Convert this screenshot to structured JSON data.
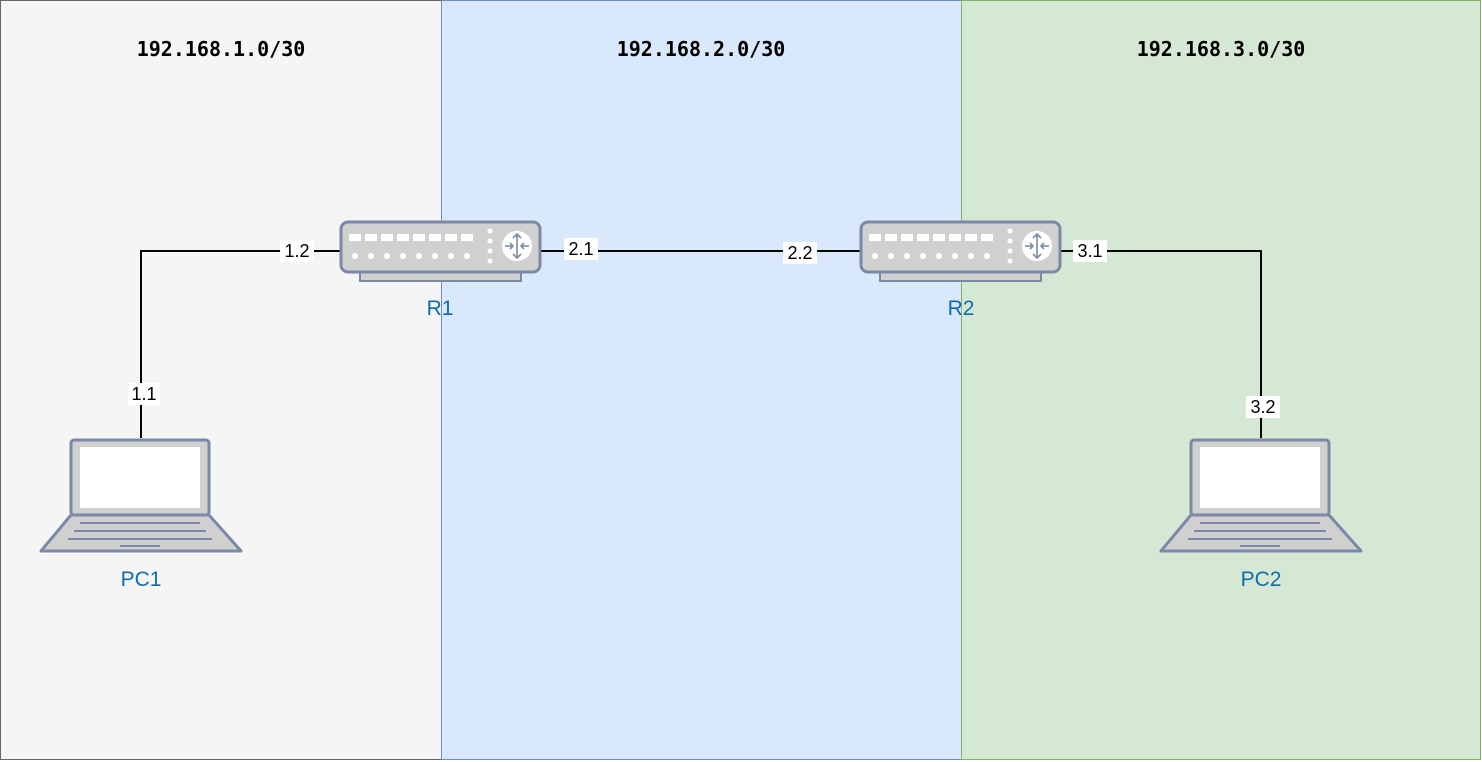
{
  "zones": [
    {
      "subnet": "192.168.1.0/30",
      "fill": "#f5f5f5",
      "stroke": "#666666"
    },
    {
      "subnet": "192.168.2.0/30",
      "fill": "#dae8fc",
      "stroke": "#6c8ebf"
    },
    {
      "subnet": "192.168.3.0/30",
      "fill": "#d5e8d4",
      "stroke": "#82b366"
    }
  ],
  "devices": {
    "pc1": {
      "label": "PC1",
      "icon": "laptop-icon"
    },
    "r1": {
      "label": "R1",
      "icon": "router-icon"
    },
    "r2": {
      "label": "R2",
      "icon": "router-icon"
    },
    "pc2": {
      "label": "PC2",
      "icon": "laptop-icon"
    }
  },
  "links": {
    "pc1_r1": {
      "pc1_end": "1.1",
      "r1_end": "1.2"
    },
    "r1_r2": {
      "r1_end": "2.1",
      "r2_end": "2.2"
    },
    "r2_pc2": {
      "r2_end": "3.1",
      "pc2_end": "3.2"
    }
  },
  "colors": {
    "device_label": "#0f6cb3",
    "device_fill": "#d0d0d0",
    "device_stroke": "#7b88a8"
  }
}
